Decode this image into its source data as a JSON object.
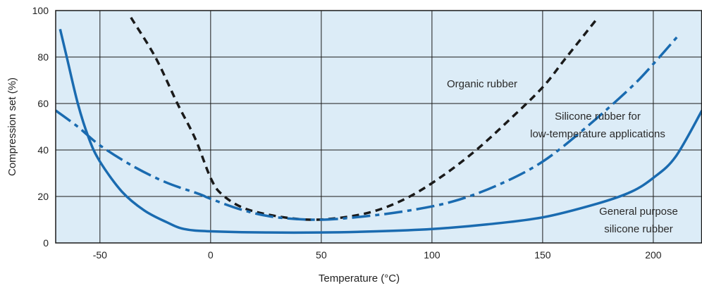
{
  "chart_data": {
    "type": "line",
    "title": "",
    "xlabel": "Temperature (°C)",
    "ylabel": "Compression set (%)",
    "xlim": [
      -70,
      222
    ],
    "ylim": [
      0,
      100
    ],
    "x_ticks": [
      -50,
      0,
      50,
      100,
      150,
      200
    ],
    "y_ticks": [
      0,
      20,
      40,
      60,
      80,
      100
    ],
    "grid": true,
    "plot_background": "#dcecf7",
    "series": [
      {
        "label_lines": [
          "Organic rubber"
        ],
        "color": "#1a1a1a",
        "style": "dashed",
        "points": [
          [
            -36,
            97
          ],
          [
            -25,
            80
          ],
          [
            -15,
            60
          ],
          [
            -7,
            45
          ],
          [
            0,
            28
          ],
          [
            5,
            21
          ],
          [
            15,
            15
          ],
          [
            30,
            11.5
          ],
          [
            45,
            10
          ],
          [
            60,
            11
          ],
          [
            75,
            14
          ],
          [
            90,
            20
          ],
          [
            105,
            29
          ],
          [
            120,
            40
          ],
          [
            135,
            53
          ],
          [
            150,
            67
          ],
          [
            160,
            79
          ],
          [
            170,
            91
          ],
          [
            175,
            97
          ]
        ]
      },
      {
        "label_lines": [
          "Silicone rubber for",
          "low-temperature applications"
        ],
        "color": "#1a6bb0",
        "style": "dashdot",
        "points": [
          [
            -70,
            57
          ],
          [
            -60,
            50
          ],
          [
            -50,
            42
          ],
          [
            -35,
            33
          ],
          [
            -20,
            26
          ],
          [
            -5,
            21
          ],
          [
            0,
            19
          ],
          [
            15,
            14
          ],
          [
            30,
            11
          ],
          [
            50,
            10
          ],
          [
            70,
            11.5
          ],
          [
            90,
            14
          ],
          [
            110,
            18
          ],
          [
            130,
            25
          ],
          [
            150,
            35
          ],
          [
            170,
            50
          ],
          [
            190,
            67
          ],
          [
            200,
            77
          ],
          [
            212,
            90
          ]
        ]
      },
      {
        "label_lines": [
          "General purpose",
          "silicone rubber"
        ],
        "color": "#1a6bb0",
        "style": "solid",
        "points": [
          [
            -68,
            92
          ],
          [
            -65,
            80
          ],
          [
            -60,
            60
          ],
          [
            -55,
            45
          ],
          [
            -50,
            35
          ],
          [
            -40,
            22
          ],
          [
            -30,
            14
          ],
          [
            -20,
            9
          ],
          [
            -12,
            6
          ],
          [
            0,
            5
          ],
          [
            25,
            4.5
          ],
          [
            50,
            4.5
          ],
          [
            75,
            5
          ],
          [
            100,
            6
          ],
          [
            125,
            8
          ],
          [
            150,
            11
          ],
          [
            175,
            17
          ],
          [
            190,
            22
          ],
          [
            200,
            28
          ],
          [
            210,
            37
          ],
          [
            222,
            57
          ]
        ]
      }
    ]
  }
}
